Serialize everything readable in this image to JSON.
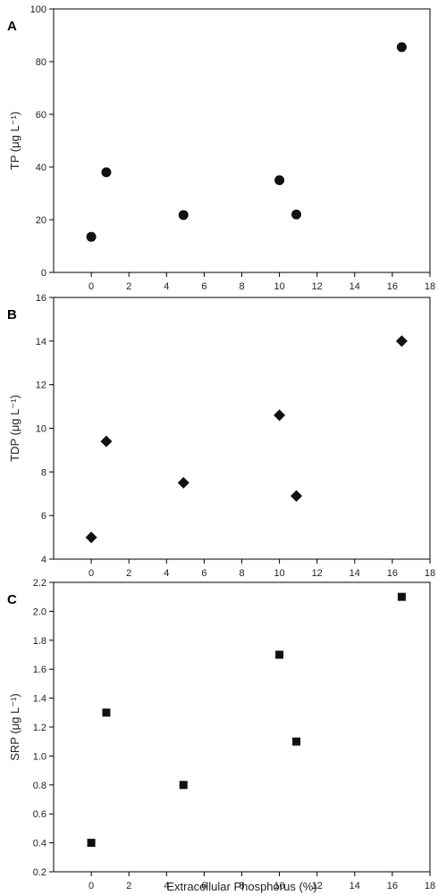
{
  "colors": {
    "axis": "#000000",
    "marker": "#111111"
  },
  "chart_data": [
    {
      "panel": "A",
      "type": "scatter",
      "marker": "circle",
      "ylabel": "TP (μg L⁻¹)",
      "xlabel": "",
      "xlim": [
        -2,
        18
      ],
      "ylim": [
        0,
        100
      ],
      "xticks": [
        0,
        2,
        4,
        6,
        8,
        10,
        12,
        14,
        16,
        18
      ],
      "yticks": [
        0,
        20,
        40,
        60,
        80,
        100
      ],
      "ytick_decimals": 0,
      "grid": false,
      "points": [
        {
          "x": 0,
          "y": 13.5
        },
        {
          "x": 0.8,
          "y": 38
        },
        {
          "x": 4.9,
          "y": 21.8
        },
        {
          "x": 10,
          "y": 35
        },
        {
          "x": 10.9,
          "y": 22
        },
        {
          "x": 16.5,
          "y": 85.5
        }
      ]
    },
    {
      "panel": "B",
      "type": "scatter",
      "marker": "diamond",
      "ylabel": "TDP (μg L⁻¹)",
      "xlabel": "",
      "xlim": [
        -2,
        18
      ],
      "ylim": [
        4,
        16
      ],
      "xticks": [
        0,
        2,
        4,
        6,
        8,
        10,
        12,
        14,
        16,
        18
      ],
      "yticks": [
        4,
        6,
        8,
        10,
        12,
        14,
        16
      ],
      "ytick_decimals": 0,
      "grid": false,
      "points": [
        {
          "x": 0,
          "y": 5.0
        },
        {
          "x": 0.8,
          "y": 9.4
        },
        {
          "x": 4.9,
          "y": 7.5
        },
        {
          "x": 10,
          "y": 10.6
        },
        {
          "x": 10.9,
          "y": 6.9
        },
        {
          "x": 16.5,
          "y": 14.0
        }
      ]
    },
    {
      "panel": "C",
      "type": "scatter",
      "marker": "square",
      "ylabel": "SRP (μg L⁻¹)",
      "xlabel": "Extracellular Phosphorus (%)",
      "xlim": [
        -2,
        18
      ],
      "ylim": [
        0.2,
        2.2
      ],
      "xticks": [
        0,
        2,
        4,
        6,
        8,
        10,
        12,
        14,
        16,
        18
      ],
      "yticks": [
        0.2,
        0.4,
        0.6,
        0.8,
        1.0,
        1.2,
        1.4,
        1.6,
        1.8,
        2.0,
        2.2
      ],
      "ytick_decimals": 1,
      "grid": false,
      "points": [
        {
          "x": 0,
          "y": 0.4
        },
        {
          "x": 0.8,
          "y": 1.3
        },
        {
          "x": 4.9,
          "y": 0.8
        },
        {
          "x": 10,
          "y": 1.7
        },
        {
          "x": 10.9,
          "y": 1.1
        },
        {
          "x": 16.5,
          "y": 2.1
        }
      ]
    }
  ]
}
